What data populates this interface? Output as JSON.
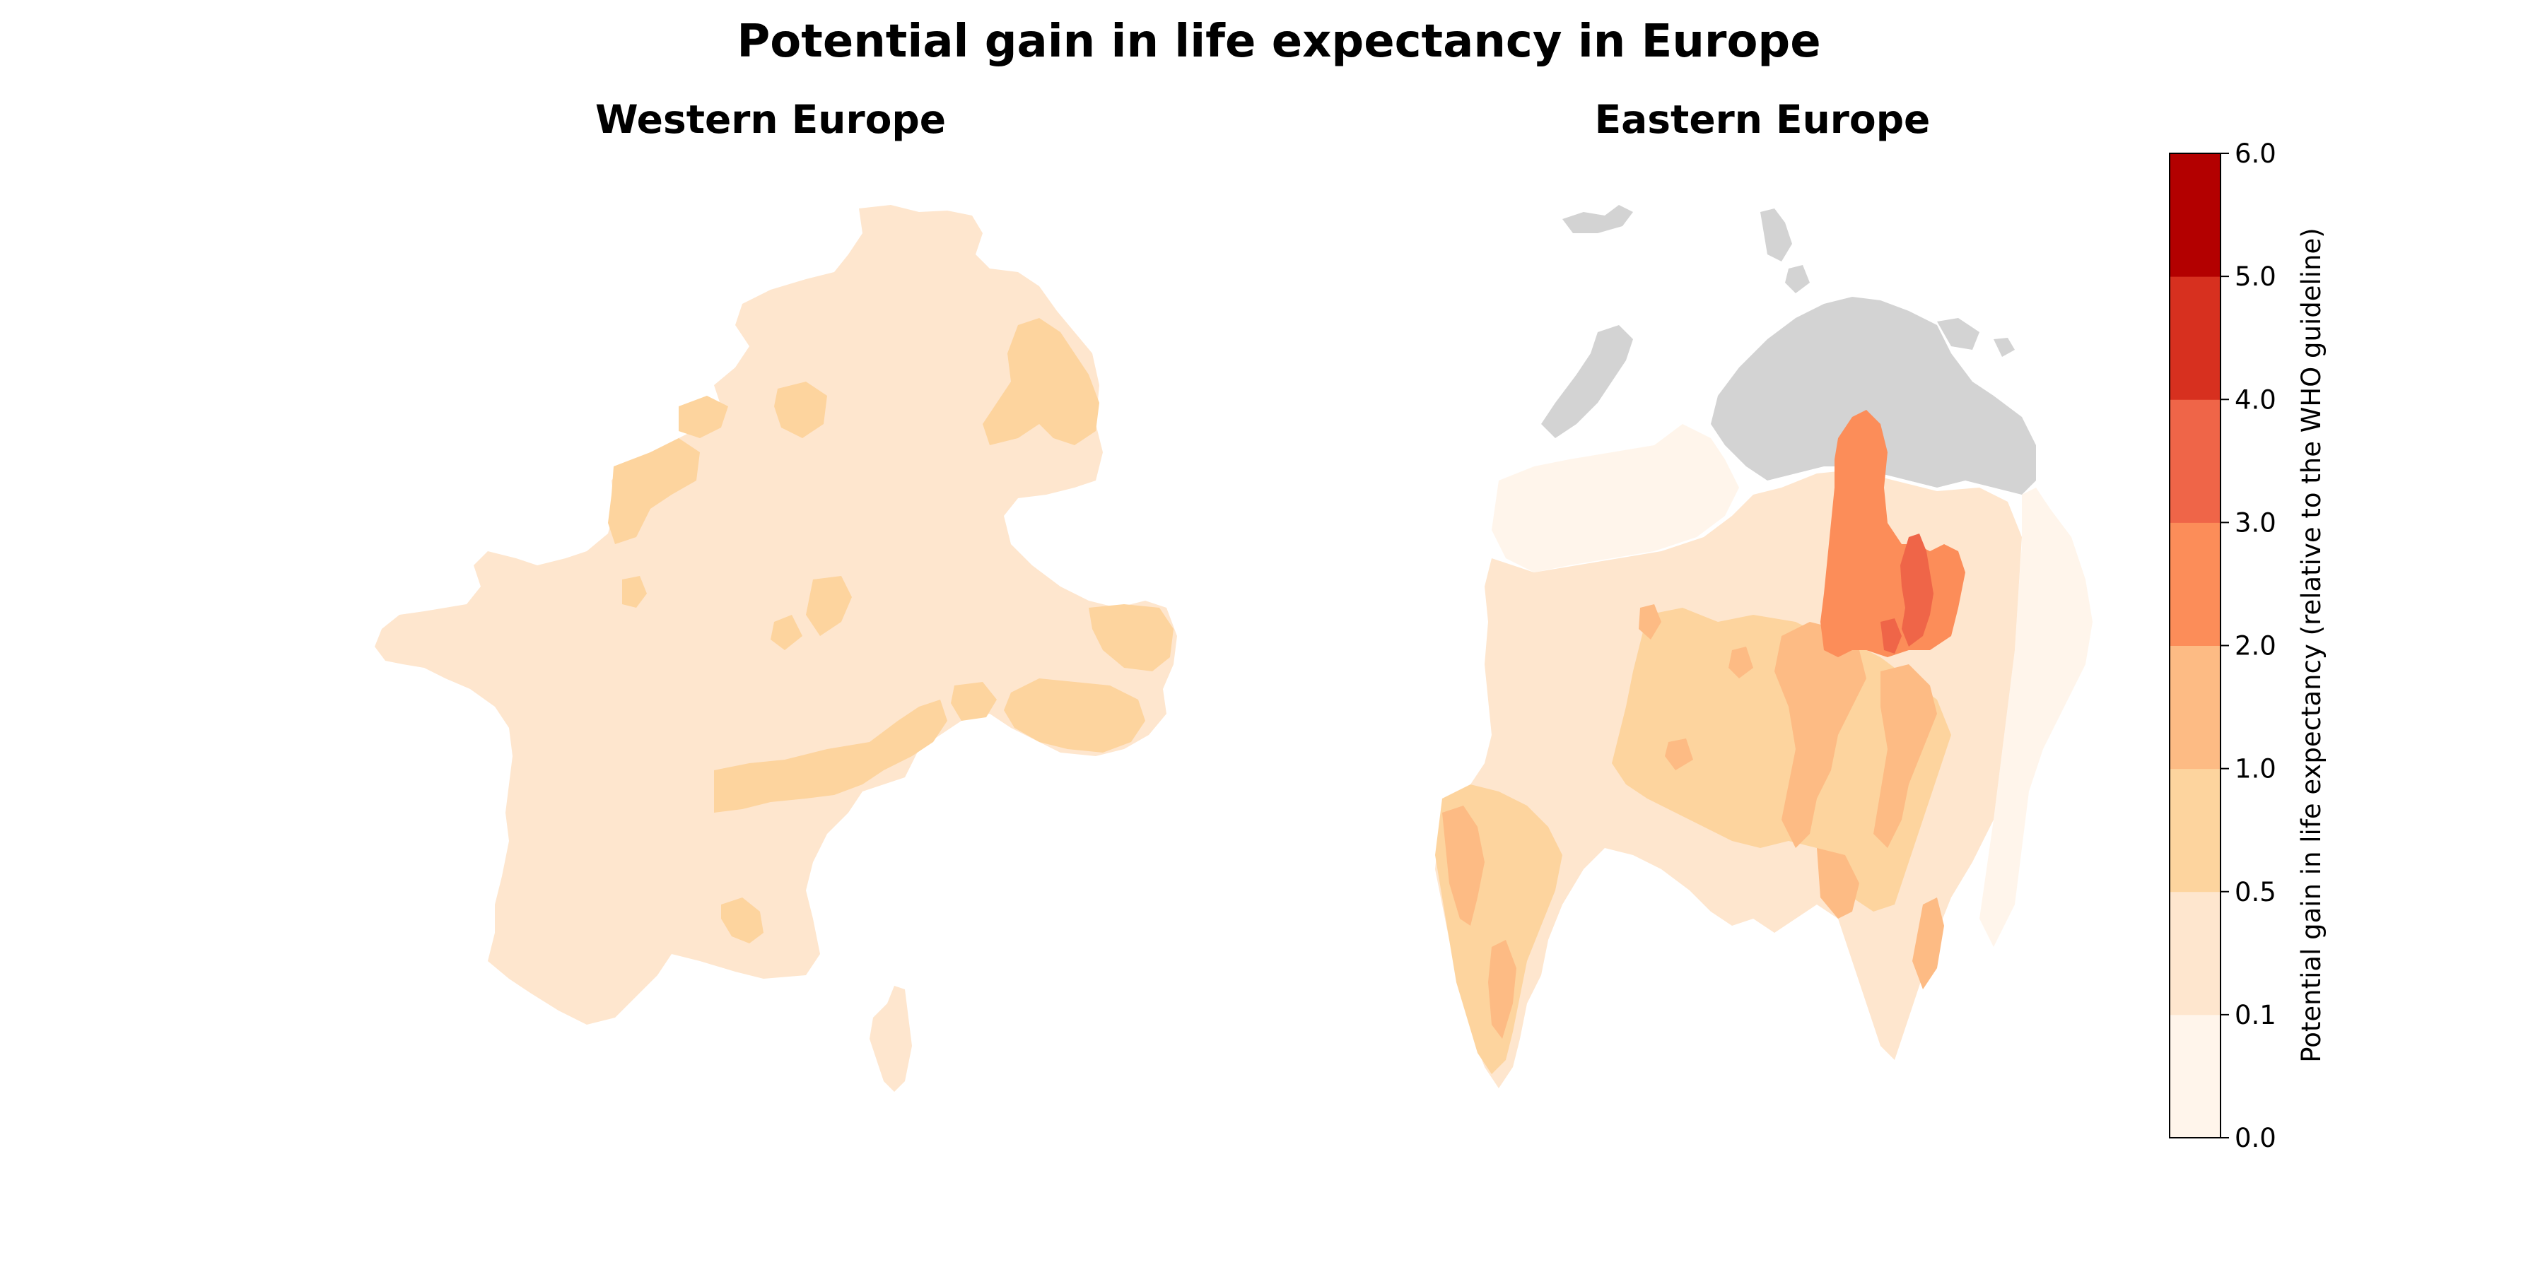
{
  "figure": {
    "title": "Potential gain in life expectancy in Europe"
  },
  "panels": [
    {
      "title": "Western Europe"
    },
    {
      "title": "Eastern Europe"
    }
  ],
  "colorbar": {
    "label": "Potential gain in life expectancy (relative to the WHO guideline)",
    "tick_labels": [
      "0.0",
      "0.1",
      "0.5",
      "1.0",
      "2.0",
      "3.0",
      "4.0",
      "5.0",
      "6.0"
    ],
    "colors": [
      "#fff5eb",
      "#fee6ce",
      "#fdd49e",
      "#fdbb84",
      "#fc8d59",
      "#ef6548",
      "#d7301f",
      "#b30000"
    ],
    "no_data_color": "#d3d3d3"
  }
}
